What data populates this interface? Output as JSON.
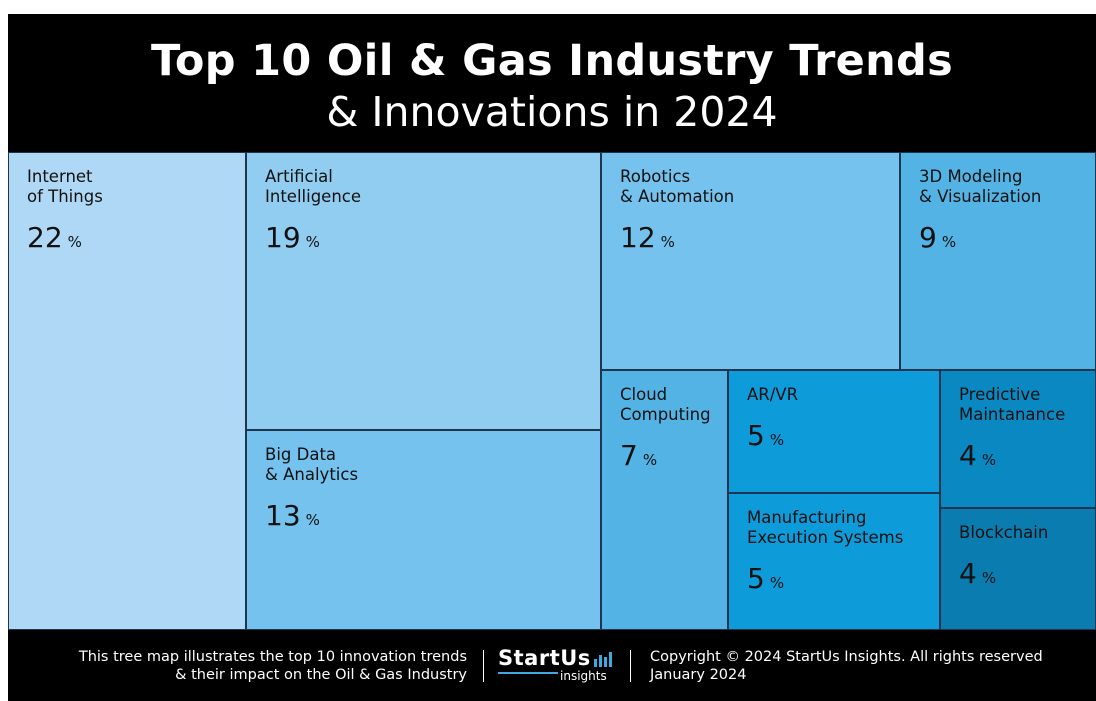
{
  "header": {
    "title_line1": "Top 10 Oil & Gas Industry Trends",
    "title_line2": "& Innovations in 2024"
  },
  "chart_data": {
    "type": "treemap",
    "unit": "%",
    "items": [
      {
        "label": "Internet\nof Things",
        "value": 22,
        "color": "#aed8f5"
      },
      {
        "label": "Artificial\nIntelligence",
        "value": 19,
        "color": "#91cdf1"
      },
      {
        "label": "Big Data\n& Analytics",
        "value": 13,
        "color": "#74c2ed"
      },
      {
        "label": "Robotics\n& Automation",
        "value": 12,
        "color": "#74c2ed"
      },
      {
        "label": "3D Modeling\n& Visualization",
        "value": 9,
        "color": "#54b3e5"
      },
      {
        "label": "Cloud\nComputing",
        "value": 7,
        "color": "#54b3e5"
      },
      {
        "label": "AR/VR",
        "value": 5,
        "color": "#0d9bda"
      },
      {
        "label": "Manufacturing\nExecution Systems",
        "value": 5,
        "color": "#0d9bda"
      },
      {
        "label": "Predictive\nMaintanance",
        "value": 4,
        "color": "#0a88c1"
      },
      {
        "label": "Blockchain",
        "value": 4,
        "color": "#0a7cb0"
      }
    ]
  },
  "footer": {
    "left_line1": "This tree map illustrates the top 10 innovation trends",
    "left_line2": "& their impact on the Oil & Gas Industry",
    "logo_word": "StartUs",
    "logo_sub": "insights",
    "copyright": "Copyright © 2024 StartUs Insights. All rights reserved",
    "date": "January 2024"
  }
}
